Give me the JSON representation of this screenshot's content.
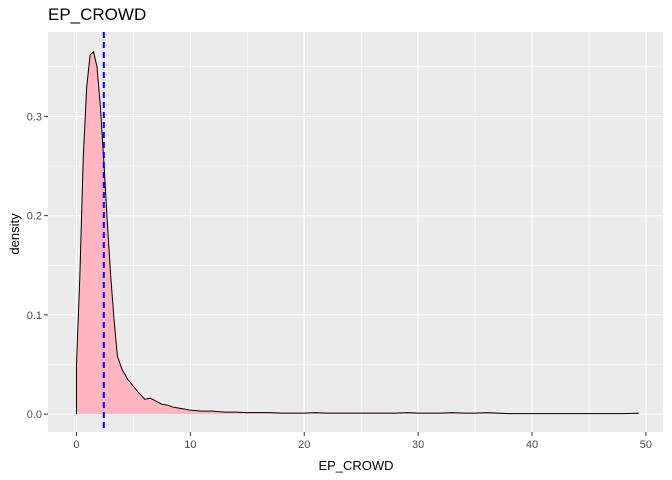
{
  "chart_data": {
    "type": "area",
    "title": "EP_CROWD",
    "xlabel": "EP_CROWD",
    "ylabel": "density",
    "xlim": [
      -2.5,
      51.5
    ],
    "ylim": [
      -0.018,
      0.385
    ],
    "x_ticks": [
      0,
      10,
      20,
      30,
      40,
      50
    ],
    "x_tick_labels": [
      "0",
      "10",
      "20",
      "30",
      "40",
      "50"
    ],
    "y_ticks": [
      0.0,
      0.1,
      0.2,
      0.3
    ],
    "y_tick_labels": [
      "0.0",
      "0.1",
      "0.2",
      "0.3"
    ],
    "grid": true,
    "mean_line": {
      "x": 2.4,
      "color": "#0000ff",
      "style": "dashed"
    },
    "fill_color": "#ffb6c1",
    "line_color": "#000000",
    "panel_color": "#ebebeb",
    "x": [
      0,
      0.3,
      0.6,
      0.9,
      1.2,
      1.5,
      1.8,
      2.1,
      2.4,
      2.7,
      3.0,
      3.3,
      3.6,
      4.0,
      4.5,
      5.0,
      5.5,
      6.0,
      6.5,
      7.0,
      7.5,
      8.0,
      8.5,
      9.0,
      10,
      11,
      12,
      13,
      14,
      15,
      16,
      17,
      18,
      19,
      20,
      21,
      22,
      23,
      24,
      25,
      26,
      27,
      28,
      29,
      30,
      31,
      32,
      33,
      34,
      35,
      36,
      37,
      38,
      39,
      40,
      41,
      42,
      43,
      44,
      45,
      46,
      47,
      48,
      49.3
    ],
    "y": [
      0.05,
      0.14,
      0.26,
      0.33,
      0.362,
      0.365,
      0.35,
      0.31,
      0.255,
      0.195,
      0.14,
      0.095,
      0.058,
      0.045,
      0.035,
      0.028,
      0.021,
      0.015,
      0.016,
      0.013,
      0.01,
      0.009,
      0.007,
      0.006,
      0.004,
      0.003,
      0.003,
      0.002,
      0.002,
      0.0015,
      0.0015,
      0.0015,
      0.001,
      0.001,
      0.001,
      0.0015,
      0.001,
      0.001,
      0.001,
      0.001,
      0.001,
      0.001,
      0.001,
      0.0015,
      0.001,
      0.001,
      0.001,
      0.0015,
      0.001,
      0.001,
      0.0015,
      0.001,
      0.0005,
      0.0005,
      0.0005,
      0.0005,
      0.0005,
      0.0005,
      0.0005,
      0.0005,
      0.0005,
      0.0005,
      0.0005,
      0.001
    ]
  }
}
